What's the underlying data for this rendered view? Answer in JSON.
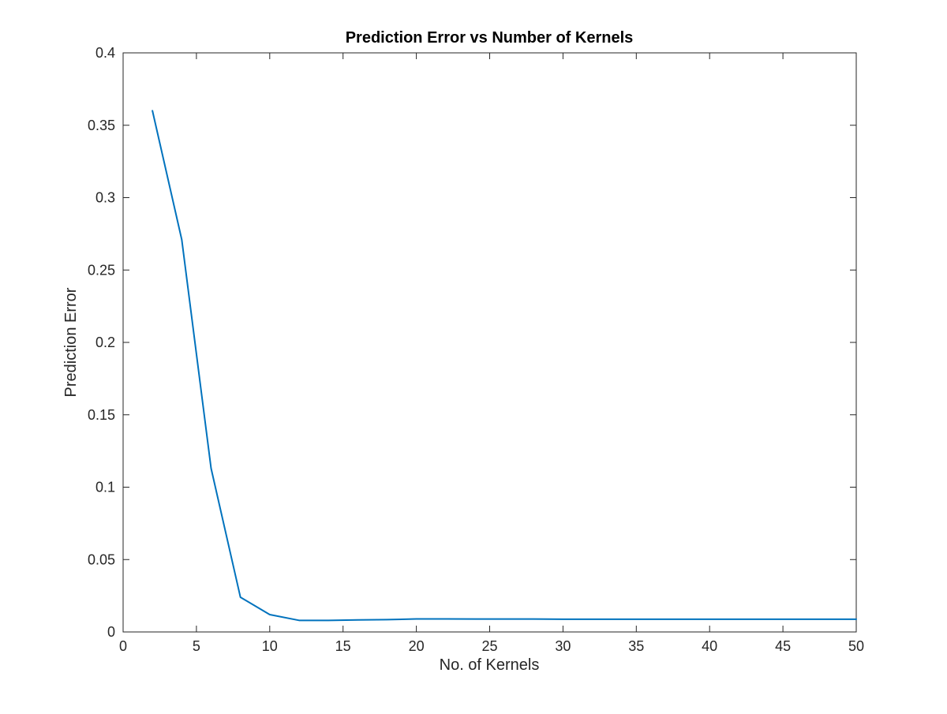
{
  "chart_data": {
    "type": "line",
    "title": "Prediction Error vs Number of Kernels",
    "xlabel": "No. of Kernels",
    "ylabel": "Prediction Error",
    "xlim": [
      0,
      50
    ],
    "ylim": [
      0,
      0.4
    ],
    "xticks": [
      0,
      5,
      10,
      15,
      20,
      25,
      30,
      35,
      40,
      45,
      50
    ],
    "xtick_labels": [
      "0",
      "5",
      "10",
      "15",
      "20",
      "25",
      "30",
      "35",
      "40",
      "45",
      "50"
    ],
    "yticks": [
      0,
      0.05,
      0.1,
      0.15,
      0.2,
      0.25,
      0.3,
      0.35,
      0.4
    ],
    "ytick_labels": [
      "0",
      "0.05",
      "0.1",
      "0.15",
      "0.2",
      "0.25",
      "0.3",
      "0.35",
      "0.4"
    ],
    "grid": false,
    "box": true,
    "series": [
      {
        "x": [
          2,
          4,
          6,
          8,
          10,
          12,
          14,
          16,
          18,
          20,
          22,
          24,
          26,
          28,
          30,
          32,
          34,
          36,
          38,
          40,
          42,
          44,
          46,
          48,
          50
        ],
        "y": [
          0.36,
          0.271,
          0.113,
          0.024,
          0.012,
          0.008,
          0.008,
          0.0083,
          0.0085,
          0.009,
          0.009,
          0.0089,
          0.0089,
          0.0089,
          0.0088,
          0.0088,
          0.0088,
          0.0088,
          0.0088,
          0.0088,
          0.0088,
          0.0088,
          0.0088,
          0.0088,
          0.0088
        ],
        "color": "#0072BD"
      }
    ],
    "colors": {
      "axis": "#262626",
      "title": "#000000",
      "background": "#ffffff"
    }
  }
}
